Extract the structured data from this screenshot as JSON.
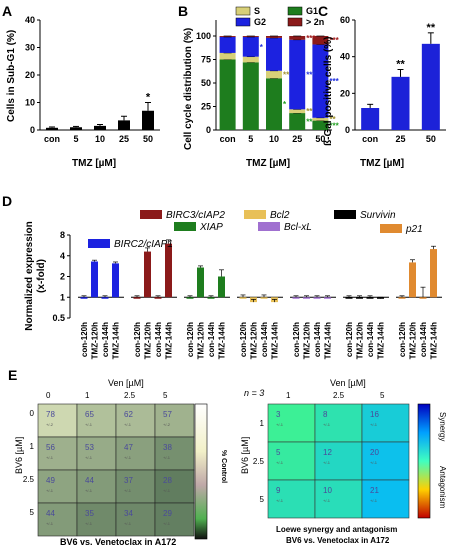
{
  "panels": {
    "A": {
      "letter": "A",
      "ylabel": "Cells in Sub-G1 (%)",
      "xlabel": "TMZ [µM]"
    },
    "B": {
      "letter": "B",
      "ylabel": "Cell cycle distribution (%)",
      "xlabel": "TMZ [µM]"
    },
    "C": {
      "letter": "C",
      "ylabel": "ß-Gal positive cells (%)",
      "xlabel": "TMZ [µM]"
    },
    "D": {
      "letter": "D",
      "ylabel_line1": "Normalized expression",
      "ylabel_line2": "(x-fold)"
    },
    "E": {
      "letter": "E",
      "left": {
        "xlabel": "Ven [µM]",
        "ylabel": "BV6 [µM]",
        "colorbar_label": "% Control",
        "caption": "BV6 vs. Venetoclax in A172"
      },
      "right": {
        "n_label": "n = 3",
        "xlabel": "Ven [µM]",
        "ylabel": "BV6 [µM]",
        "colorbar_top": "Synergy",
        "colorbar_bottom": "Antagonism",
        "caption_line1": "Loewe synergy and antagonism",
        "caption_line2": "BV6 vs. Venetoclax in A172"
      }
    }
  },
  "chart_data": [
    {
      "panel": "A",
      "type": "bar",
      "categories": [
        "con",
        "5",
        "10",
        "25",
        "50"
      ],
      "values": [
        0.8,
        1.0,
        1.5,
        3.5,
        7.0
      ],
      "errors": [
        0.3,
        0.3,
        0.5,
        1.5,
        3.0
      ],
      "annotations": [
        "",
        "",
        "",
        "",
        "*"
      ],
      "ylim": [
        0,
        40
      ],
      "yticks": [
        0,
        10,
        20,
        30,
        40
      ],
      "color": "#000000"
    },
    {
      "panel": "B",
      "type": "bar",
      "stacked": true,
      "categories": [
        "con",
        "5",
        "10",
        "25",
        "50"
      ],
      "yticks": [
        0,
        25,
        50,
        75,
        100
      ],
      "ylim": [
        0,
        100
      ],
      "legend": [
        "S",
        "G1",
        "G2",
        "> 2n"
      ],
      "series": [
        {
          "name": "G1",
          "color": "#1e7d1e",
          "values": [
            75,
            72,
            55,
            18,
            10
          ]
        },
        {
          "name": "S",
          "color": "#d8d078",
          "values": [
            7,
            6,
            8,
            4,
            3
          ]
        },
        {
          "name": "G2",
          "color": "#1c22e0",
          "values": [
            17,
            21,
            35,
            74,
            78
          ]
        },
        {
          "name": "> 2n",
          "color": "#8b1a1a",
          "values": [
            1,
            1,
            2,
            4,
            9
          ]
        }
      ],
      "annotations": {
        "G1": [
          "",
          "",
          "*",
          "**",
          "***"
        ],
        "S": [
          "",
          "",
          "**",
          "**",
          "**"
        ],
        "G2": [
          "",
          "*",
          "",
          "***",
          "***"
        ],
        "> 2n": [
          "",
          "",
          "",
          "***",
          "***"
        ]
      },
      "annotation_colors": {
        "G1": "#1e9d1e",
        "S": "#a09030",
        "G2": "#2030e0",
        "> 2n": "#a01818"
      }
    },
    {
      "panel": "C",
      "type": "bar",
      "categories": [
        "con",
        "25",
        "50"
      ],
      "values": [
        12,
        29,
        47
      ],
      "errors": [
        2,
        4,
        6
      ],
      "annotations": [
        "",
        "**",
        "**"
      ],
      "ylim": [
        0,
        60
      ],
      "yticks": [
        0,
        20,
        40,
        60
      ],
      "color": "#1c22d8"
    },
    {
      "panel": "D",
      "type": "bar",
      "scale": "log2",
      "ylim": [
        0.5,
        8
      ],
      "yticks": [
        "0.5",
        "1",
        "2",
        "4",
        "8"
      ],
      "categories": [
        "con-120h",
        "TMZ-120h",
        "con-144h",
        "TMZ-144h"
      ],
      "groups": [
        {
          "name": "BIRC2/cIAP1",
          "color": "#1c22e0",
          "values": [
            1.0,
            3.3,
            1.0,
            3.1
          ],
          "errors": [
            0.05,
            0.15,
            0.05,
            0.15
          ]
        },
        {
          "name": "BIRC3/cIAP2",
          "color": "#8b1a1a",
          "values": [
            1.0,
            4.6,
            1.0,
            6.0
          ],
          "errors": [
            0.05,
            0.6,
            0.05,
            0.8
          ]
        },
        {
          "name": "XIAP",
          "color": "#1e7d1e",
          "values": [
            1.0,
            2.7,
            1.0,
            2.0
          ],
          "errors": [
            0.05,
            0.15,
            0.05,
            0.5
          ]
        },
        {
          "name": "Bcl2",
          "color": "#e8c058",
          "values": [
            1.0,
            0.85,
            1.0,
            0.85
          ],
          "errors": [
            0.08,
            0.08,
            0.08,
            0.08
          ]
        },
        {
          "name": "Bcl-xL",
          "color": "#a070d0",
          "values": [
            1.0,
            1.0,
            1.0,
            1.0
          ],
          "errors": [
            0.05,
            0.05,
            0.05,
            0.05
          ]
        },
        {
          "name": "Survivin",
          "color": "#000000",
          "values": [
            1.0,
            1.0,
            1.0,
            0.95
          ],
          "errors": [
            0.05,
            0.05,
            0.05,
            0.05
          ]
        },
        {
          "name": "p21",
          "color": "#e08a30",
          "values": [
            1.0,
            3.2,
            1.0,
            5.0
          ],
          "errors": [
            0.05,
            0.3,
            0.4,
            0.5
          ]
        }
      ]
    },
    {
      "panel": "E-left",
      "type": "heatmap",
      "x_label": "Ven [µM]",
      "y_label": "BV6 [µM]",
      "x": [
        "0",
        "1",
        "2.5",
        "5"
      ],
      "y": [
        "0",
        "1",
        "2.5",
        "5"
      ],
      "values": [
        [
          78,
          65,
          62,
          57
        ],
        [
          56,
          53,
          47,
          38
        ],
        [
          49,
          44,
          37,
          28
        ],
        [
          44,
          35,
          34,
          29
        ]
      ],
      "sd": [
        [
          "+/-2",
          "+/-1",
          "+/-1",
          "+/-2"
        ],
        [
          "+/-1",
          "+/-1",
          "+/-1",
          "+/-1"
        ],
        [
          "+/-1",
          "+/-1",
          "+/-1",
          "+/-1"
        ],
        [
          "+/-1",
          "+/-1",
          "+/-1",
          "+/-1"
        ]
      ],
      "colorbar_label": "% Control"
    },
    {
      "panel": "E-right",
      "type": "heatmap",
      "x_label": "Ven [µM]",
      "y_label": "BV6 [µM]",
      "x": [
        "1",
        "2.5",
        "5"
      ],
      "y": [
        "1",
        "2.5",
        "5"
      ],
      "values": [
        [
          3,
          8,
          16
        ],
        [
          5,
          12,
          20
        ],
        [
          9,
          10,
          21
        ]
      ],
      "sd": [
        [
          "+/-1",
          "+/-1",
          "+/-1"
        ],
        [
          "+/-1",
          "+/-1",
          "+/-1"
        ],
        [
          "+/-1",
          "+/-1",
          "+/-1"
        ]
      ],
      "colorbar_labels": [
        "Synergy",
        "Antagonism"
      ]
    }
  ]
}
